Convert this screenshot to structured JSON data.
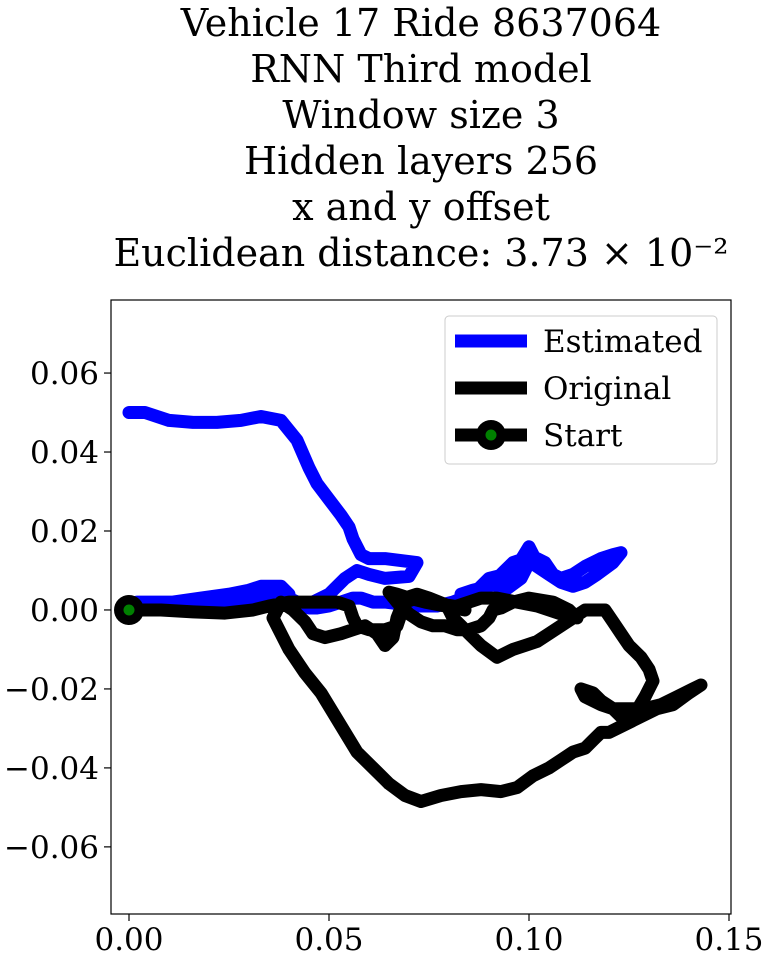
{
  "chart_data": {
    "type": "line",
    "title_lines": [
      "Vehicle 17 Ride 8637064",
      "RNN Third model",
      "Window size 3",
      "Hidden layers 256",
      "x and y offset",
      "Euclidean distance: 3.73 × 10⁻²"
    ],
    "xlabel": "",
    "ylabel": "",
    "xlim": [
      -0.0045,
      0.1505
    ],
    "ylim": [
      -0.077,
      0.0785
    ],
    "xticks": [
      0.0,
      0.05,
      0.1,
      0.15
    ],
    "xtick_labels": [
      "0.00",
      "0.05",
      "0.10",
      "0.15"
    ],
    "yticks": [
      0.06,
      0.04,
      0.02,
      0.0,
      -0.02,
      -0.04,
      -0.06
    ],
    "ytick_labels": [
      "0.06",
      "0.04",
      "0.02",
      "0.00",
      "−0.02",
      "−0.04",
      "−0.06"
    ],
    "grid": false,
    "legend_position": "top-right",
    "series": [
      {
        "name": "Estimated",
        "color": "#0000ff",
        "x": [
          0.0,
          0.004,
          0.01,
          0.016,
          0.022,
          0.028,
          0.033,
          0.038,
          0.042,
          0.045,
          0.047,
          0.05,
          0.053,
          0.055,
          0.056,
          0.057,
          0.058,
          0.06,
          0.064,
          0.068,
          0.072,
          0.07,
          0.064,
          0.06,
          0.057,
          0.054,
          0.05,
          0.046,
          0.042,
          0.04,
          0.04,
          0.038,
          0.035,
          0.033,
          0.03,
          0.025,
          0.018,
          0.011,
          0.007,
          0.005,
          0.002,
          0.001,
          0.007,
          0.013,
          0.023,
          0.034,
          0.04,
          0.042,
          0.043,
          0.045,
          0.047,
          0.05,
          0.053,
          0.056,
          0.058,
          0.061,
          0.064,
          0.068,
          0.072,
          0.077,
          0.081,
          0.086,
          0.09,
          0.094,
          0.098,
          0.102,
          0.104,
          0.106,
          0.108,
          0.111,
          0.114,
          0.118,
          0.121,
          0.123,
          0.121,
          0.117,
          0.114,
          0.111,
          0.108,
          0.105,
          0.102,
          0.099,
          0.096,
          0.093,
          0.092,
          0.094,
          0.098,
          0.101,
          0.1,
          0.097,
          0.093,
          0.09,
          0.086,
          0.083
        ],
        "y": [
          0.05,
          0.05,
          0.048,
          0.0475,
          0.0475,
          0.048,
          0.049,
          0.048,
          0.043,
          0.036,
          0.032,
          0.028,
          0.024,
          0.021,
          0.018,
          0.016,
          0.014,
          0.013,
          0.013,
          0.0125,
          0.012,
          0.0085,
          0.008,
          0.009,
          0.01,
          0.008,
          0.004,
          0.002,
          0.001,
          0.002,
          0.004,
          0.006,
          0.006,
          0.006,
          0.005,
          0.004,
          0.003,
          0.002,
          0.002,
          0.002,
          0.002,
          0.001,
          0.001,
          0.0015,
          0.002,
          0.003,
          0.003,
          0.002,
          0.001,
          0.0005,
          0.0005,
          0.001,
          0.002,
          0.003,
          0.003,
          0.002,
          0.002,
          0.0015,
          0.001,
          0.001,
          0.002,
          0.004,
          0.008,
          0.009,
          0.011,
          0.013,
          0.012,
          0.009,
          0.008,
          0.009,
          0.011,
          0.013,
          0.014,
          0.0145,
          0.012,
          0.009,
          0.007,
          0.006,
          0.007,
          0.009,
          0.011,
          0.013,
          0.012,
          0.009,
          0.006,
          0.005,
          0.008,
          0.014,
          0.016,
          0.011,
          0.008,
          0.006,
          0.005,
          0.004
        ]
      },
      {
        "name": "Original",
        "color": "#000000",
        "x": [
          0.0,
          0.008,
          0.016,
          0.024,
          0.031,
          0.035,
          0.04,
          0.046,
          0.052,
          0.055,
          0.056,
          0.057,
          0.06,
          0.064,
          0.067,
          0.068,
          0.069,
          0.072,
          0.075,
          0.078,
          0.081,
          0.084,
          0.08,
          0.075,
          0.072,
          0.069,
          0.067,
          0.066,
          0.064,
          0.062,
          0.059,
          0.056,
          0.053,
          0.049,
          0.046,
          0.044,
          0.041,
          0.038,
          0.036,
          0.038,
          0.04,
          0.044,
          0.048,
          0.051,
          0.054,
          0.057,
          0.061,
          0.065,
          0.069,
          0.073,
          0.078,
          0.083,
          0.088,
          0.093,
          0.097,
          0.101,
          0.105,
          0.108,
          0.111,
          0.114,
          0.116,
          0.118,
          0.12,
          0.124,
          0.128,
          0.132,
          0.136,
          0.14,
          0.143,
          0.141,
          0.137,
          0.133,
          0.129,
          0.125,
          0.121,
          0.118,
          0.116,
          0.113,
          0.114,
          0.118,
          0.121,
          0.123,
          0.126,
          0.129,
          0.131,
          0.13,
          0.128,
          0.125,
          0.123,
          0.121,
          0.119,
          0.117,
          0.114,
          0.111,
          0.108,
          0.105,
          0.102,
          0.099,
          0.096,
          0.092,
          0.088,
          0.085,
          0.083,
          0.081,
          0.08,
          0.082,
          0.085,
          0.088,
          0.092,
          0.097,
          0.102,
          0.108,
          0.112,
          0.11,
          0.106,
          0.1,
          0.096,
          0.093,
          0.091,
          0.09,
          0.088,
          0.085,
          0.082,
          0.079,
          0.076,
          0.073,
          0.07,
          0.067,
          0.065,
          0.067,
          0.07,
          0.074,
          0.079,
          0.084
        ],
        "y": [
          0.0,
          0.0,
          -0.0005,
          -0.0008,
          0.0,
          0.001,
          0.002,
          0.002,
          0.002,
          0.001,
          -0.002,
          -0.004,
          -0.005,
          -0.005,
          -0.004,
          -0.001,
          0.002,
          0.003,
          0.002,
          0.0015,
          0.001,
          0.0005,
          0.001,
          0.003,
          0.004,
          0.003,
          -0.002,
          -0.007,
          -0.009,
          -0.006,
          -0.004,
          -0.005,
          -0.006,
          -0.007,
          -0.006,
          -0.003,
          0.0,
          0.002,
          -0.002,
          -0.006,
          -0.01,
          -0.016,
          -0.021,
          -0.026,
          -0.031,
          -0.036,
          -0.04,
          -0.044,
          -0.047,
          -0.0485,
          -0.047,
          -0.046,
          -0.0455,
          -0.046,
          -0.045,
          -0.042,
          -0.04,
          -0.038,
          -0.036,
          -0.035,
          -0.033,
          -0.031,
          -0.031,
          -0.029,
          -0.027,
          -0.025,
          -0.024,
          -0.021,
          -0.019,
          -0.02,
          -0.022,
          -0.024,
          -0.025,
          -0.025,
          -0.025,
          -0.023,
          -0.021,
          -0.02,
          -0.022,
          -0.024,
          -0.025,
          -0.027,
          -0.027,
          -0.022,
          -0.018,
          -0.015,
          -0.012,
          -0.009,
          -0.006,
          -0.003,
          0.0,
          0.0,
          0.0,
          -0.002,
          -0.004,
          -0.006,
          -0.008,
          -0.009,
          -0.01,
          -0.012,
          -0.009,
          -0.006,
          -0.004,
          -0.002,
          0.0,
          0.001,
          0.002,
          0.003,
          0.003,
          0.002,
          0.001,
          -0.001,
          -0.002,
          0.0,
          0.002,
          0.003,
          0.002,
          0.0005,
          0.0,
          -0.002,
          -0.004,
          -0.005,
          -0.005,
          -0.004,
          -0.004,
          -0.003,
          -0.001,
          0.002,
          0.0045,
          0.004,
          0.003,
          0.002,
          0.001,
          0.0
        ]
      }
    ],
    "markers": [
      {
        "name": "Start",
        "x": 0.0,
        "y": 0.0,
        "line_color": "#000000",
        "face_color": "#008000",
        "edge_color": "#000000"
      }
    ]
  }
}
